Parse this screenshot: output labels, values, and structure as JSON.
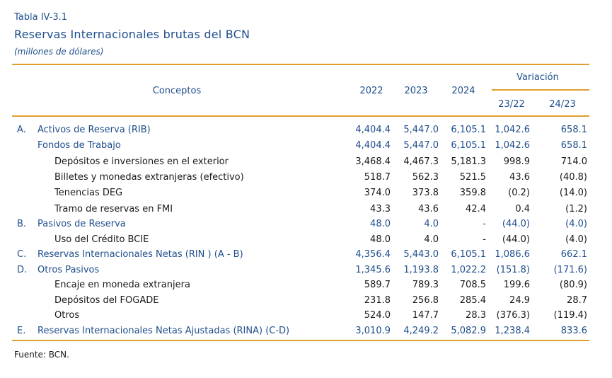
{
  "table_label": "Tabla IV-3.1",
  "title": "Reservas Internacionales brutas del BCN",
  "subtitle": "(millones de dólares)",
  "header": {
    "concepts": "Conceptos",
    "years": [
      "2022",
      "2023",
      "2024"
    ],
    "variation": "Variación",
    "variation_cols": [
      "23/22",
      "24/23"
    ]
  },
  "rows": [
    {
      "letter": "A.",
      "label": "Activos de Reserva (RIB)",
      "level": 1,
      "color": "#1f4e8c",
      "values": [
        "4,404.4",
        "5,447.0",
        "6,105.1",
        "1,042.6",
        "658.1"
      ]
    },
    {
      "letter": "",
      "label": "Fondos de Trabajo",
      "level": 1,
      "color": "#1f4e8c",
      "values": [
        "4,404.4",
        "5,447.0",
        "6,105.1",
        "1,042.6",
        "658.1"
      ]
    },
    {
      "letter": "",
      "label": "Depósitos e inversiones en el exterior",
      "level": 2,
      "color": "#1a1a1a",
      "values": [
        "3,468.4",
        "4,467.3",
        "5,181.3",
        "998.9",
        "714.0"
      ]
    },
    {
      "letter": "",
      "label": "Billetes y monedas extranjeras (efectivo)",
      "level": 2,
      "color": "#1a1a1a",
      "values": [
        "518.7",
        "562.3",
        "521.5",
        "43.6",
        "(40.8)"
      ]
    },
    {
      "letter": "",
      "label": "Tenencias DEG",
      "level": 2,
      "color": "#1a1a1a",
      "values": [
        "374.0",
        "373.8",
        "359.8",
        "(0.2)",
        "(14.0)"
      ]
    },
    {
      "letter": "",
      "label": "Tramo de reservas en FMI",
      "level": 2,
      "color": "#1a1a1a",
      "values": [
        "43.3",
        "43.6",
        "42.4",
        "0.4",
        "(1.2)"
      ]
    },
    {
      "letter": "B.",
      "label": "Pasivos de Reserva",
      "level": 1,
      "color": "#1f4e8c",
      "values": [
        "48.0",
        "4.0",
        "-",
        "(44.0)",
        "(4.0)"
      ]
    },
    {
      "letter": "",
      "label": "Uso del Crédito BCIE",
      "level": 2,
      "color": "#1a1a1a",
      "values": [
        "48.0",
        "4.0",
        "-",
        "(44.0)",
        "(4.0)"
      ]
    },
    {
      "letter": "C.",
      "label": "Reservas Internacionales Netas (RIN ) (A - B)",
      "level": 1,
      "color": "#1f4e8c",
      "values": [
        "4,356.4",
        "5,443.0",
        "6,105.1",
        "1,086.6",
        "662.1"
      ]
    },
    {
      "letter": "D.",
      "label": "Otros Pasivos",
      "level": 1,
      "color": "#1f4e8c",
      "values": [
        "1,345.6",
        "1,193.8",
        "1,022.2",
        "(151.8)",
        "(171.6)"
      ]
    },
    {
      "letter": "",
      "label": "Encaje en moneda extranjera",
      "level": 2,
      "color": "#1a1a1a",
      "values": [
        "589.7",
        "789.3",
        "708.5",
        "199.6",
        "(80.9)"
      ]
    },
    {
      "letter": "",
      "label": "Depósitos del FOGADE",
      "level": 2,
      "color": "#1a1a1a",
      "values": [
        "231.8",
        "256.8",
        "285.4",
        "24.9",
        "28.7"
      ]
    },
    {
      "letter": "",
      "label": "Otros",
      "level": 2,
      "color": "#1a1a1a",
      "values": [
        "524.0",
        "147.7",
        "28.3",
        "(376.3)",
        "(119.4)"
      ]
    },
    {
      "letter": "E.",
      "label": "Reservas Internacionales Netas Ajustadas (RINA) (C-D)",
      "level": 1,
      "color": "#1f4e8c",
      "values": [
        "3,010.9",
        "4,249.2",
        "5,082.9",
        "1,238.4",
        "833.6"
      ]
    }
  ],
  "source": "Fuente: BCN."
}
